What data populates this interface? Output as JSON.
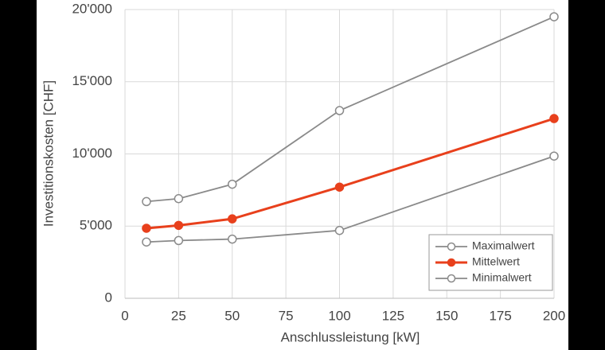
{
  "chart_data": {
    "type": "line",
    "x_label": "Anschlussleistung [kW]",
    "y_label": "Investitionskosten [CHF]",
    "x": [
      10,
      25,
      50,
      100,
      200
    ],
    "series": [
      {
        "name": "Maximalwert",
        "color": "#8a8a8a",
        "marker": "open",
        "values": [
          6700,
          6900,
          7900,
          13000,
          19500
        ]
      },
      {
        "name": "Mittelwert",
        "color": "#e8401c",
        "marker": "filled",
        "values": [
          4850,
          5050,
          5500,
          7700,
          12450
        ]
      },
      {
        "name": "Minimalwert",
        "color": "#8a8a8a",
        "marker": "open",
        "values": [
          3900,
          4000,
          4100,
          4700,
          9850
        ]
      }
    ],
    "xlim": [
      0,
      200
    ],
    "xticks": [
      0,
      25,
      50,
      75,
      100,
      125,
      150,
      175,
      200
    ],
    "ylim": [
      0,
      20000
    ],
    "yticks": [
      {
        "value": 0,
        "label": "0"
      },
      {
        "value": 5000,
        "label": "5'000"
      },
      {
        "value": 10000,
        "label": "10'000"
      },
      {
        "value": 15000,
        "label": "15'000"
      },
      {
        "value": 20000,
        "label": "20'000"
      }
    ],
    "grid": true,
    "legend": "lower right"
  }
}
